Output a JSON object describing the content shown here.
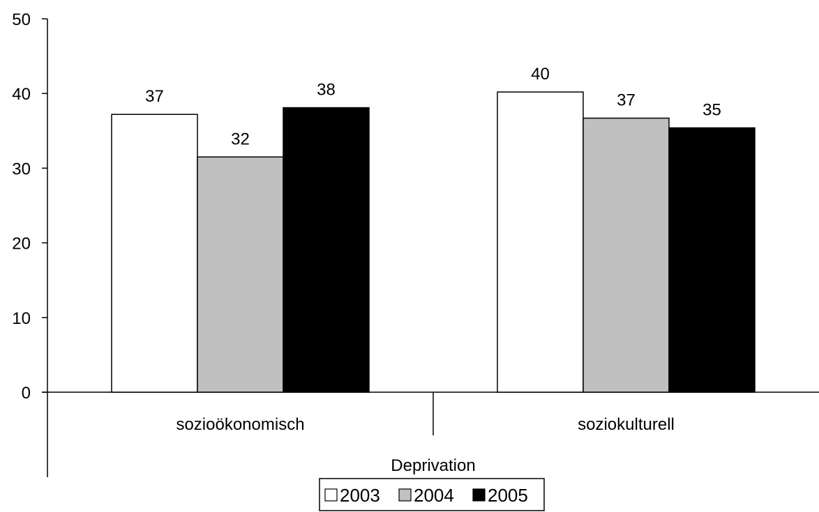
{
  "chart_data": {
    "type": "bar",
    "categories": [
      "sozioökonomisch",
      "soziokulturell"
    ],
    "group_label": "Deprivation",
    "ylim": [
      0,
      50
    ],
    "yticks": [
      0,
      10,
      20,
      30,
      40,
      50
    ],
    "grid": false,
    "legend_position": "bottom-center",
    "series": [
      {
        "name": "2003",
        "color": "#ffffff",
        "values": [
          37.2,
          40.2
        ],
        "labels": [
          "37",
          "40"
        ]
      },
      {
        "name": "2004",
        "color": "#c0c0c0",
        "values": [
          31.5,
          36.7
        ],
        "labels": [
          "32",
          "37"
        ]
      },
      {
        "name": "2005",
        "color": "#000000",
        "values": [
          38.1,
          35.4
        ],
        "labels": [
          "38",
          "35"
        ]
      }
    ]
  }
}
